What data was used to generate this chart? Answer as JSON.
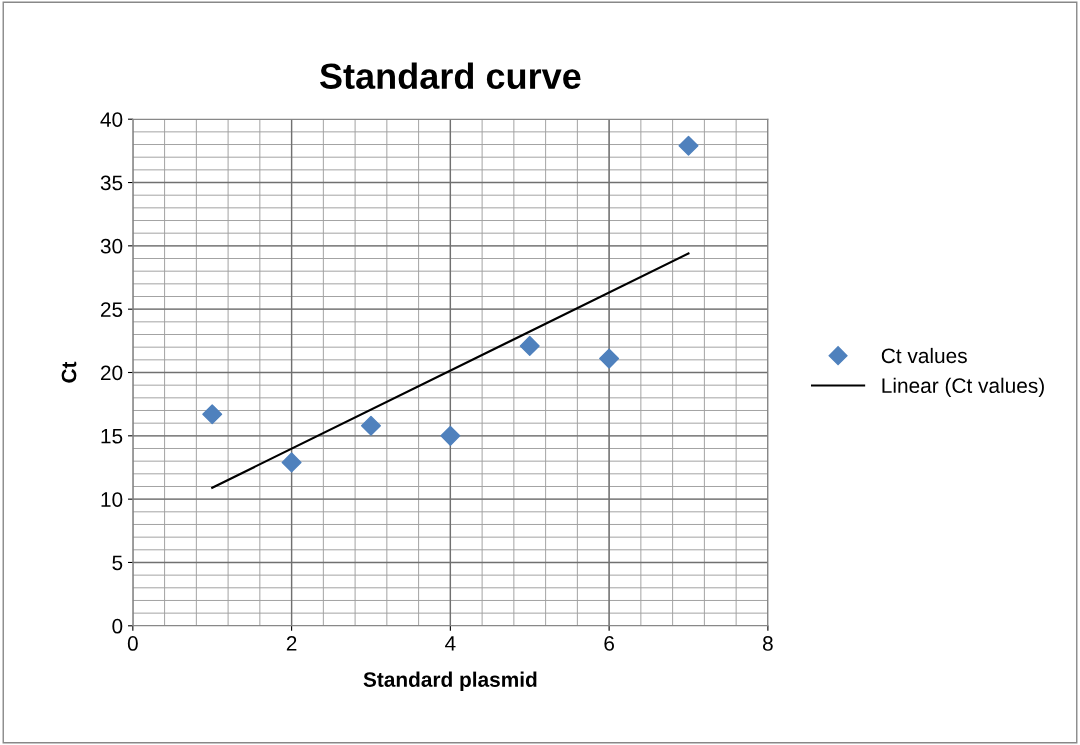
{
  "chart_data": {
    "type": "scatter",
    "title": "Standard curve",
    "xlabel": "Standard plasmid",
    "ylabel": "Ct",
    "series": [
      {
        "name": "Ct values",
        "color": "#4f81bd",
        "marker": "diamond",
        "x": [
          1,
          2,
          3,
          4,
          5,
          6,
          7
        ],
        "values": [
          16.7,
          12.9,
          15.8,
          15.0,
          22.1,
          21.1,
          37.9
        ]
      },
      {
        "name": "Linear (Ct values)",
        "type": "line",
        "color": "#000000",
        "marker": "none",
        "line_style": "solid",
        "x": [
          1,
          7
        ],
        "values": [
          10.9,
          29.4
        ]
      }
    ],
    "xlim": [
      0,
      8
    ],
    "xticks": [
      0,
      2,
      4,
      6,
      8
    ],
    "ylim": [
      0,
      40
    ],
    "yticks": [
      0,
      5,
      10,
      15,
      20,
      25,
      30,
      35,
      40
    ],
    "grid": true,
    "legend": "right"
  }
}
